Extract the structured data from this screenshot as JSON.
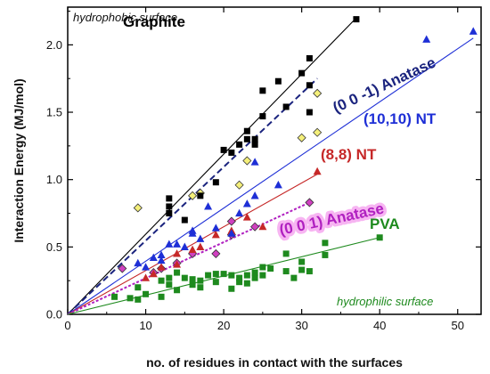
{
  "chart_data": {
    "type": "scatter",
    "title": "",
    "xlabel": "no. of residues in contact with the surfaces",
    "ylabel": "Interaction Energy (MJ/mol)",
    "xlim": [
      0,
      53
    ],
    "ylim": [
      0,
      2.28
    ],
    "xticks": [
      "0",
      "10",
      "20",
      "30",
      "40",
      "50"
    ],
    "yticks": [
      "0.0",
      "0.5",
      "1.0",
      "1.5",
      "2.0"
    ],
    "grid": false,
    "annotations": [
      {
        "text": "hydrophobic surface",
        "color": "#111111"
      },
      {
        "text": "hydrophilic surface",
        "color": "#1e8a1e"
      }
    ],
    "series": [
      {
        "name": "Graphite",
        "color": "#000000",
        "marker": "square",
        "fit": {
          "x": [
            0,
            37
          ],
          "y": [
            0,
            2.2
          ],
          "style": "solid"
        },
        "label_halo": "none",
        "points": [
          [
            13,
            0.8
          ],
          [
            13,
            0.75
          ],
          [
            13,
            0.86
          ],
          [
            15,
            0.7
          ],
          [
            17,
            0.88
          ],
          [
            19,
            0.98
          ],
          [
            20,
            1.22
          ],
          [
            21,
            1.2
          ],
          [
            22,
            1.26
          ],
          [
            23,
            1.3
          ],
          [
            23,
            1.36
          ],
          [
            24,
            1.26
          ],
          [
            24,
            1.3
          ],
          [
            25,
            1.66
          ],
          [
            25,
            1.47
          ],
          [
            27,
            1.73
          ],
          [
            28,
            1.54
          ],
          [
            30,
            1.79
          ],
          [
            31,
            1.5
          ],
          [
            31,
            1.7
          ],
          [
            31,
            1.9
          ],
          [
            37,
            2.19
          ]
        ]
      },
      {
        "name": "(0 0 -1) Anatase",
        "color": "#1a237e",
        "marker": "diamond",
        "fill": "#f4ef7a",
        "fit": {
          "x": [
            0,
            32
          ],
          "y": [
            0,
            1.75
          ],
          "style": "dashed"
        },
        "label_halo": "none",
        "points": [
          [
            9,
            0.79
          ],
          [
            16,
            0.88
          ],
          [
            17,
            0.9
          ],
          [
            22,
            0.96
          ],
          [
            23,
            1.14
          ],
          [
            30,
            1.31
          ],
          [
            32,
            1.35
          ],
          [
            32,
            1.64
          ]
        ]
      },
      {
        "name": "(10,10) NT",
        "color": "#1e2fd6",
        "marker": "triangle",
        "fit": {
          "x": [
            0,
            52
          ],
          "y": [
            0,
            2.05
          ],
          "style": "solid"
        },
        "label_halo": "none",
        "points": [
          [
            9,
            0.38
          ],
          [
            10,
            0.35
          ],
          [
            11,
            0.42
          ],
          [
            12,
            0.4
          ],
          [
            12,
            0.44
          ],
          [
            13,
            0.52
          ],
          [
            14,
            0.52
          ],
          [
            15,
            0.5
          ],
          [
            16,
            0.6
          ],
          [
            16,
            0.62
          ],
          [
            17,
            0.56
          ],
          [
            18,
            0.8
          ],
          [
            19,
            0.64
          ],
          [
            21,
            0.6
          ],
          [
            22,
            0.75
          ],
          [
            23,
            0.82
          ],
          [
            24,
            0.88
          ],
          [
            24,
            1.13
          ],
          [
            27,
            0.96
          ],
          [
            46,
            2.04
          ],
          [
            52,
            2.1
          ]
        ]
      },
      {
        "name": "(8,8) NT",
        "color": "#c62828",
        "marker": "triangle",
        "fit": {
          "x": [
            0,
            32
          ],
          "y": [
            0,
            1.04
          ],
          "style": "solid"
        },
        "label_halo": "none",
        "points": [
          [
            10,
            0.27
          ],
          [
            11,
            0.3
          ],
          [
            12,
            0.35
          ],
          [
            14,
            0.37
          ],
          [
            14,
            0.45
          ],
          [
            16,
            0.48
          ],
          [
            17,
            0.5
          ],
          [
            19,
            0.59
          ],
          [
            21,
            0.62
          ],
          [
            23,
            0.72
          ],
          [
            25,
            0.65
          ],
          [
            32,
            1.06
          ]
        ]
      },
      {
        "name": "(0 0 1) Anatase",
        "color": "#b020c0",
        "marker": "diamond",
        "fill": "#d040c0",
        "fit": {
          "x": [
            0,
            31
          ],
          "y": [
            0,
            0.83
          ],
          "style": "dotted"
        },
        "label_halo": "#f7b5f2",
        "points": [
          [
            7,
            0.34
          ],
          [
            11,
            0.31
          ],
          [
            12,
            0.34
          ],
          [
            14,
            0.38
          ],
          [
            16,
            0.45
          ],
          [
            19,
            0.45
          ],
          [
            21,
            0.59
          ],
          [
            21,
            0.69
          ],
          [
            24,
            0.65
          ],
          [
            31,
            0.83
          ]
        ]
      },
      {
        "name": "PVA",
        "color": "#1e8a1e",
        "marker": "square",
        "fit": {
          "x": [
            0,
            40
          ],
          "y": [
            0,
            0.57
          ],
          "style": "solid"
        },
        "label_halo": "none",
        "points": [
          [
            6,
            0.13
          ],
          [
            8,
            0.12
          ],
          [
            9,
            0.11
          ],
          [
            9,
            0.2
          ],
          [
            10,
            0.15
          ],
          [
            12,
            0.13
          ],
          [
            12,
            0.25
          ],
          [
            13,
            0.22
          ],
          [
            13,
            0.27
          ],
          [
            14,
            0.18
          ],
          [
            14,
            0.31
          ],
          [
            15,
            0.27
          ],
          [
            16,
            0.22
          ],
          [
            16,
            0.26
          ],
          [
            17,
            0.25
          ],
          [
            17,
            0.2
          ],
          [
            18,
            0.29
          ],
          [
            19,
            0.24
          ],
          [
            19,
            0.3
          ],
          [
            20,
            0.3
          ],
          [
            21,
            0.19
          ],
          [
            21,
            0.29
          ],
          [
            22,
            0.24
          ],
          [
            22,
            0.27
          ],
          [
            23,
            0.29
          ],
          [
            23,
            0.23
          ],
          [
            24,
            0.27
          ],
          [
            24,
            0.31
          ],
          [
            25,
            0.29
          ],
          [
            25,
            0.35
          ],
          [
            26,
            0.34
          ],
          [
            28,
            0.32
          ],
          [
            28,
            0.45
          ],
          [
            29,
            0.27
          ],
          [
            30,
            0.33
          ],
          [
            30,
            0.39
          ],
          [
            31,
            0.32
          ],
          [
            33,
            0.44
          ],
          [
            33,
            0.53
          ],
          [
            40,
            0.57
          ]
        ]
      }
    ]
  }
}
